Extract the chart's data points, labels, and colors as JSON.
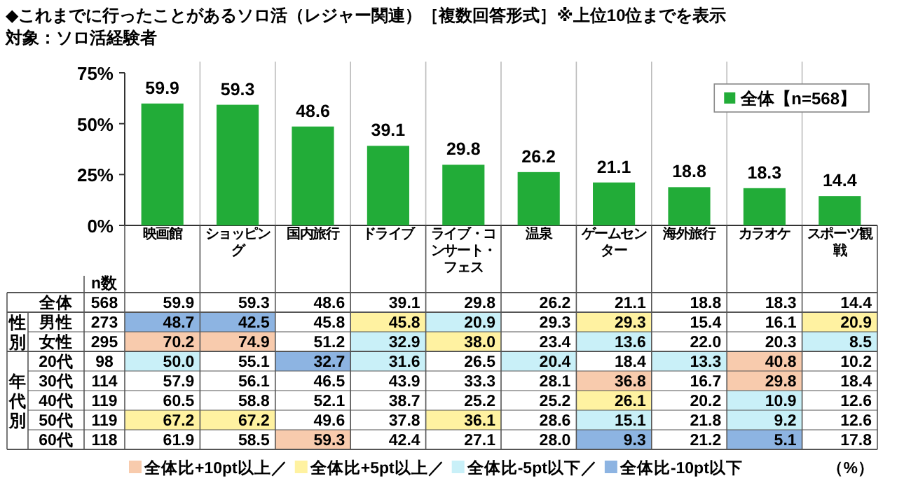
{
  "chart_data": [
    {
      "type": "bar",
      "title": "◆これまでに行ったことがあるソロ活（レジャー関連）［複数回答形式］※上位10位までを表示",
      "subtitle": "対象：ソロ活経験者",
      "categories": [
        null,
        null,
        null,
        null,
        null,
        null,
        null,
        null,
        null,
        null
      ],
      "series": [
        {
          "name": "全体【n=568】",
          "color": "#22ac38",
          "values": [
            59.9,
            59.3,
            48.6,
            39.1,
            29.8,
            26.2,
            21.1,
            18.8,
            18.3,
            14.4
          ],
          "value_labels": [
            "59.9",
            "59.3",
            "48.6",
            "39.1",
            "29.8",
            "26.2",
            "21.1",
            "18.8",
            "18.3",
            "14.4"
          ]
        }
      ],
      "ylim": [
        0,
        75
      ],
      "yticks": [
        {
          "value": 0,
          "label": "0%"
        },
        {
          "value": 25,
          "label": "25%"
        },
        {
          "value": 50,
          "label": "50%"
        },
        {
          "value": 75,
          "label": "75%"
        }
      ],
      "legend": "top right",
      "grid": "x",
      "tick_labels": "y"
    },
    {
      "type": "heatmap",
      "categories": [
        "映画館",
        "ショッピング",
        "国内旅行",
        "ドライブ",
        "ライブ・コンサート・フェス",
        "温泉",
        "ゲームセンター",
        "海外旅行",
        "カラオケ",
        "スポーツ観戦"
      ],
      "y_categories": [
        "全体",
        "男性",
        "女性",
        "20代",
        "30代",
        "40代",
        "50代",
        "60代"
      ],
      "y2label": "n数",
      "y2_categories": [
        "568",
        "273",
        "295",
        "98",
        "114",
        "119",
        "119",
        "118"
      ],
      "cells": [
        [
          59.9,
          59.3,
          48.6,
          39.1,
          29.8,
          26.2,
          21.1,
          18.8,
          18.3,
          14.4
        ],
        [
          48.7,
          42.5,
          45.8,
          45.8,
          20.9,
          29.3,
          29.3,
          15.4,
          16.1,
          20.9
        ],
        [
          70.2,
          74.9,
          51.2,
          32.9,
          38.0,
          23.4,
          13.6,
          22.0,
          20.3,
          8.5
        ],
        [
          50.0,
          55.1,
          32.7,
          31.6,
          26.5,
          20.4,
          18.4,
          13.3,
          40.8,
          10.2
        ],
        [
          57.9,
          56.1,
          46.5,
          43.9,
          33.3,
          28.1,
          36.8,
          16.7,
          29.8,
          18.4
        ],
        [
          60.5,
          58.8,
          52.1,
          38.7,
          25.2,
          25.2,
          26.1,
          20.2,
          10.9,
          12.6
        ],
        [
          67.2,
          67.2,
          49.6,
          37.8,
          36.1,
          28.6,
          15.1,
          21.8,
          9.2,
          12.6
        ],
        [
          61.9,
          58.5,
          59.3,
          42.4,
          27.1,
          28.0,
          9.3,
          21.2,
          5.1,
          17.8
        ]
      ],
      "cell_labels": [
        [
          "59.9",
          "59.3",
          "48.6",
          "39.1",
          "29.8",
          "26.2",
          "21.1",
          "18.8",
          "18.3",
          "14.4"
        ],
        [
          "48.7",
          "42.5",
          "45.8",
          "45.8",
          "20.9",
          "29.3",
          "29.3",
          "15.4",
          "16.1",
          "20.9"
        ],
        [
          "70.2",
          "74.9",
          "51.2",
          "32.9",
          "38.0",
          "23.4",
          "13.6",
          "22.0",
          "20.3",
          "8.5"
        ],
        [
          "50.0",
          "55.1",
          "32.7",
          "31.6",
          "26.5",
          "20.4",
          "18.4",
          "13.3",
          "40.8",
          "10.2"
        ],
        [
          "57.9",
          "56.1",
          "46.5",
          "43.9",
          "33.3",
          "28.1",
          "36.8",
          "16.7",
          "29.8",
          "18.4"
        ],
        [
          "60.5",
          "58.8",
          "52.1",
          "38.7",
          "25.2",
          "25.2",
          "26.1",
          "20.2",
          "10.9",
          "12.6"
        ],
        [
          "67.2",
          "67.2",
          "49.6",
          "37.8",
          "36.1",
          "28.6",
          "15.1",
          "21.8",
          "9.2",
          "12.6"
        ],
        [
          "61.9",
          "58.5",
          "59.3",
          "42.4",
          "27.1",
          "28.0",
          "9.3",
          "21.2",
          "5.1",
          "17.8"
        ]
      ],
      "colors": [
        "#f8cbad",
        "#fff2a1",
        "#c9f0f8",
        "#8db4e2"
      ],
      "annotations": [
        "性別",
        "年代別",
        "（%）",
        "全体比+10pt以上／",
        "全体比+5pt以上／",
        "全体比-5pt以下／",
        "全体比-10pt以下"
      ]
    }
  ]
}
